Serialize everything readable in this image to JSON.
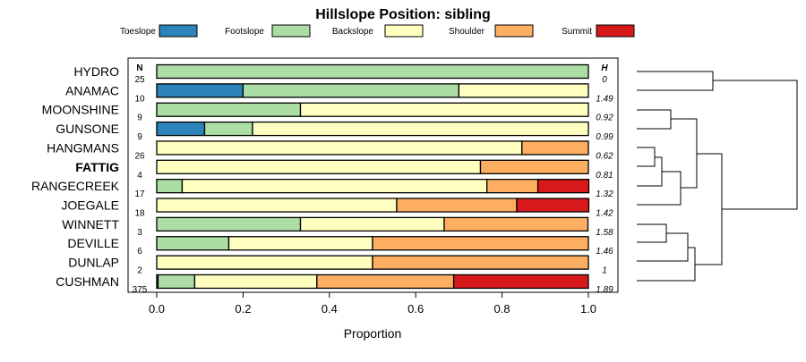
{
  "chart_data": {
    "type": "bar",
    "stacked": true,
    "orientation": "horizontal",
    "title": "Hillslope Position: sibling",
    "xlabel": "Proportion",
    "ylabel": "",
    "xlim": [
      0,
      1
    ],
    "xticks": [
      "0.0",
      "0.2",
      "0.4",
      "0.6",
      "0.8",
      "1.0"
    ],
    "legend_position": "top",
    "n_header": "N",
    "h_header": "H",
    "highlighted_category": "FATTIG",
    "categories": [
      "HYDRO",
      "ANAMAC",
      "MOONSHINE",
      "GUNSONE",
      "HANGMANS",
      "FATTIG",
      "RANGECREEK",
      "JOEGALE",
      "WINNETT",
      "DEVILLE",
      "DUNLAP",
      "CUSHMAN"
    ],
    "n": [
      "25",
      "10",
      "9",
      "9",
      "26",
      "4",
      "17",
      "18",
      "3",
      "6",
      "2",
      "375"
    ],
    "h": [
      "0",
      "1.49",
      "0.92",
      "0.99",
      "0.62",
      "0.81",
      "1.32",
      "1.42",
      "1.58",
      "1.46",
      "1",
      "1.89"
    ],
    "series": [
      {
        "name": "Toeslope",
        "color": "#2b83ba",
        "values": [
          0,
          0.2,
          0,
          0.111,
          0,
          0,
          0,
          0,
          0,
          0,
          0,
          0.003
        ]
      },
      {
        "name": "Footslope",
        "color": "#abdda4",
        "values": [
          1,
          0.5,
          0.333,
          0.111,
          0,
          0,
          0.059,
          0,
          0.333,
          0.167,
          0,
          0.085
        ]
      },
      {
        "name": "Backslope",
        "color": "#ffffbf",
        "values": [
          0,
          0.3,
          0.667,
          0.778,
          0.846,
          0.75,
          0.706,
          0.556,
          0.333,
          0.333,
          0.5,
          0.283
        ]
      },
      {
        "name": "Shoulder",
        "color": "#fdae61",
        "values": [
          0,
          0,
          0,
          0,
          0.154,
          0.25,
          0.118,
          0.278,
          0.333,
          0.5,
          0.5,
          0.317
        ]
      },
      {
        "name": "Summit",
        "color": "#d7191c",
        "values": [
          0,
          0,
          0,
          0,
          0,
          0,
          0.118,
          0.167,
          0,
          0,
          0,
          0.312
        ]
      }
    ]
  }
}
